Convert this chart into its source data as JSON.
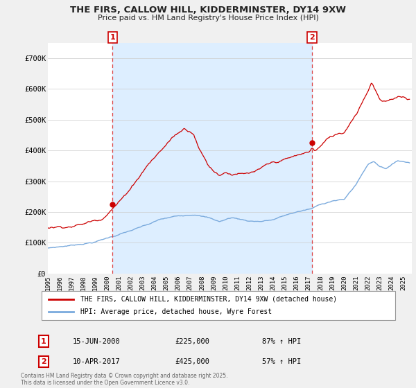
{
  "title": "THE FIRS, CALLOW HILL, KIDDERMINSTER, DY14 9XW",
  "subtitle": "Price paid vs. HM Land Registry's House Price Index (HPI)",
  "background_color": "#f0f0f0",
  "plot_bg_color": "#ffffff",
  "shade_color": "#ddeeff",
  "ylim": [
    0,
    750000
  ],
  "xtick_years": [
    1995,
    1996,
    1997,
    1998,
    1999,
    2000,
    2001,
    2002,
    2003,
    2004,
    2005,
    2006,
    2007,
    2008,
    2009,
    2010,
    2011,
    2012,
    2013,
    2014,
    2015,
    2016,
    2017,
    2018,
    2019,
    2020,
    2021,
    2022,
    2023,
    2024,
    2025
  ],
  "red_line_color": "#cc0000",
  "blue_line_color": "#7aaadd",
  "vline_color": "#dd4444",
  "marker1_year": 2000.46,
  "marker1_price": 225000,
  "marker2_year": 2017.28,
  "marker2_price": 425000,
  "legend_red": "THE FIRS, CALLOW HILL, KIDDERMINSTER, DY14 9XW (detached house)",
  "legend_blue": "HPI: Average price, detached house, Wyre Forest",
  "info1_date": "15-JUN-2000",
  "info1_price": "£225,000",
  "info1_hpi": "87% ↑ HPI",
  "info2_date": "10-APR-2017",
  "info2_price": "£425,000",
  "info2_hpi": "57% ↑ HPI",
  "footer": "Contains HM Land Registry data © Crown copyright and database right 2025.\nThis data is licensed under the Open Government Licence v3.0."
}
